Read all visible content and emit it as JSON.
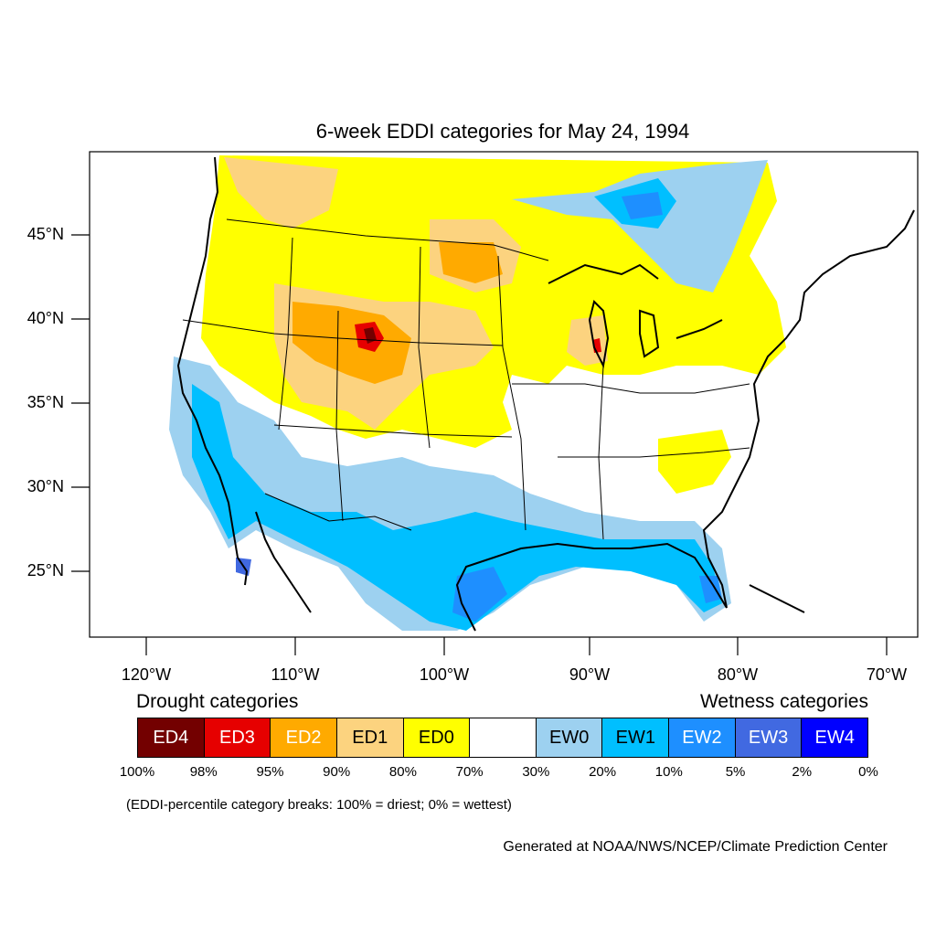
{
  "title": "6-week EDDI categories for May 24, 1994",
  "lat_labels": [
    "45°N",
    "40°N",
    "35°N",
    "30°N",
    "25°N"
  ],
  "lon_labels": [
    "120°W",
    "110°W",
    "100°W",
    "90°W",
    "80°W",
    "70°W"
  ],
  "legend": {
    "drought_heading": "Drought categories",
    "wetness_heading": "Wetness categories",
    "categories": [
      {
        "label": "ED4",
        "color": "#730000",
        "text_color": "#ffffff"
      },
      {
        "label": "ED3",
        "color": "#e60000",
        "text_color": "#ffffff"
      },
      {
        "label": "ED2",
        "color": "#ffaa00",
        "text_color": "#ffffff"
      },
      {
        "label": "ED1",
        "color": "#fcd37f",
        "text_color": "#000000"
      },
      {
        "label": "ED0",
        "color": "#ffff00",
        "text_color": "#000000"
      },
      {
        "label": "",
        "color": "#ffffff",
        "text_color": "#000000"
      },
      {
        "label": "EW0",
        "color": "#9dd1f0",
        "text_color": "#000000"
      },
      {
        "label": "EW1",
        "color": "#00bfff",
        "text_color": "#000000"
      },
      {
        "label": "EW2",
        "color": "#1e8fff",
        "text_color": "#ffffff"
      },
      {
        "label": "EW3",
        "color": "#4169e1",
        "text_color": "#ffffff"
      },
      {
        "label": "EW4",
        "color": "#0000ff",
        "text_color": "#ffffff"
      }
    ],
    "breaks": [
      "100%",
      "98%",
      "95%",
      "90%",
      "80%",
      "70%",
      "30%",
      "20%",
      "10%",
      "5%",
      "2%",
      "0%"
    ]
  },
  "note": "(EDDI-percentile category breaks: 100% = driest; 0% = wettest)",
  "credit": "Generated at NOAA/NWS/NCEP/Climate Prediction Center"
}
